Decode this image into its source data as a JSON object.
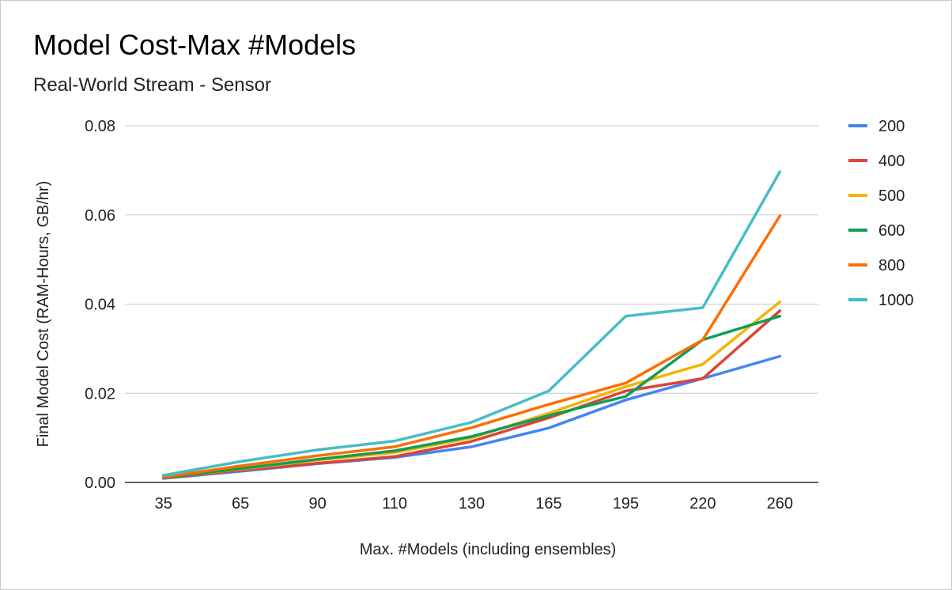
{
  "chart_data": {
    "type": "line",
    "title": "Model Cost-Max #Models",
    "subtitle": "Real-World Stream - Sensor",
    "xlabel": "Max. #Models (including ensembles)",
    "ylabel": "Final Model Cost (RAM-Hours, GB/hr)",
    "categories": [
      "35",
      "65",
      "90",
      "110",
      "130",
      "165",
      "195",
      "220",
      "260"
    ],
    "y_ticks": [
      "0.00",
      "0.02",
      "0.04",
      "0.06",
      "0.08"
    ],
    "ylim": [
      0,
      0.08
    ],
    "grid": true,
    "legend_position": "right",
    "series": [
      {
        "name": "200",
        "color": "#4285f4",
        "values": [
          0.0009,
          0.0025,
          0.0042,
          0.0056,
          0.008,
          0.0122,
          0.0185,
          0.0233,
          0.0283
        ]
      },
      {
        "name": "400",
        "color": "#db4437",
        "values": [
          0.001,
          0.0027,
          0.0043,
          0.0058,
          0.0092,
          0.0145,
          0.0205,
          0.0233,
          0.0385
        ]
      },
      {
        "name": "500",
        "color": "#f4b400",
        "values": [
          0.0011,
          0.003,
          0.005,
          0.0067,
          0.01,
          0.0155,
          0.0215,
          0.0265,
          0.0405
        ]
      },
      {
        "name": "600",
        "color": "#0f9d58",
        "values": [
          0.0011,
          0.0031,
          0.0052,
          0.0071,
          0.0103,
          0.015,
          0.0193,
          0.032,
          0.0373
        ]
      },
      {
        "name": "800",
        "color": "#ff6d01",
        "values": [
          0.0012,
          0.0037,
          0.006,
          0.008,
          0.0123,
          0.0175,
          0.0223,
          0.032,
          0.0598
        ]
      },
      {
        "name": "1000",
        "color": "#46bdc6",
        "values": [
          0.0016,
          0.0047,
          0.0073,
          0.0093,
          0.0135,
          0.0205,
          0.0373,
          0.0392,
          0.0697
        ]
      }
    ]
  }
}
